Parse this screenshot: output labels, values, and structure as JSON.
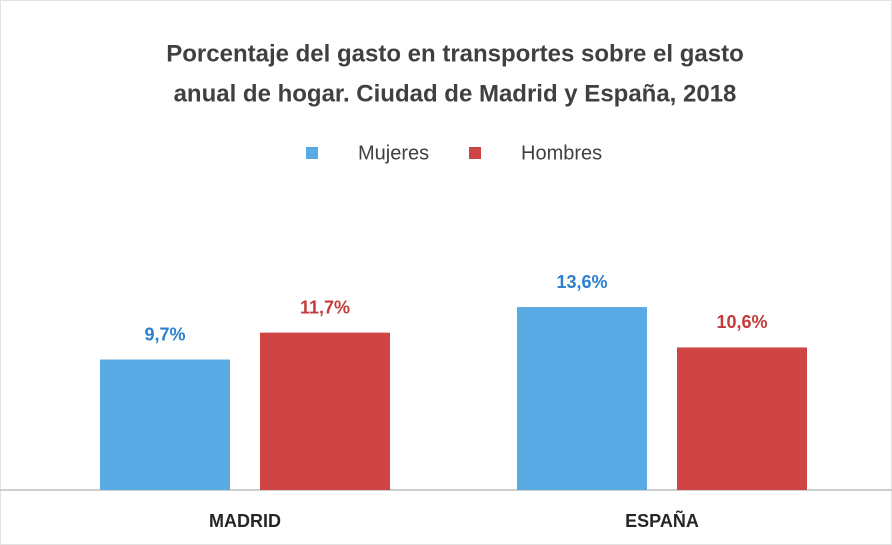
{
  "chart_data": {
    "type": "bar",
    "title": [
      "Porcentaje del gasto en transportes sobre el gasto",
      "anual de hogar. Ciudad de Madrid y España, 2018"
    ],
    "categories": [
      "MADRID",
      "ESPAÑA"
    ],
    "series": [
      {
        "name": "Mujeres",
        "color": "#5aaae6",
        "label_color": "#2a7fcf",
        "values": [
          9.7,
          13.6
        ],
        "value_labels": [
          "9,7%",
          "13,6%"
        ]
      },
      {
        "name": "Hombres",
        "color": "#cf4545",
        "label_color": "#c43a3a",
        "values": [
          11.7,
          10.6
        ],
        "value_labels": [
          "11,7%",
          "10,6%"
        ]
      }
    ],
    "legend": "top"
  }
}
